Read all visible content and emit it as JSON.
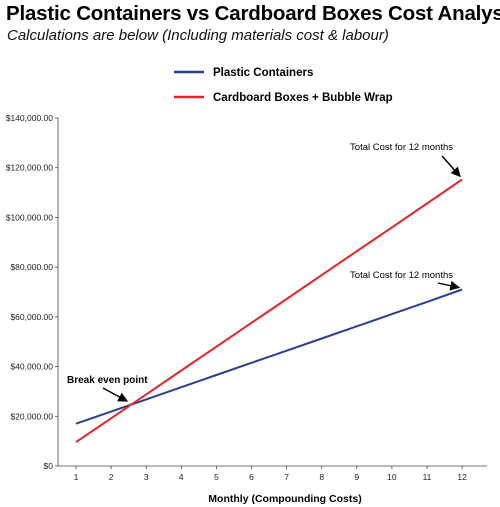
{
  "header": {
    "title": "Plastic Containers vs Cardboard Boxes Cost Analysis",
    "subtitle": "Calculations are below (Including materials cost & labour)"
  },
  "chart_data": {
    "type": "line",
    "title": "Plastic Containers vs Cardboard Boxes Cost Analysis",
    "subtitle": "Calculations are below (Including materials cost & labour)",
    "xlabel": "Monthly (Compounding Costs)",
    "ylabel": "",
    "x": [
      1,
      2,
      3,
      4,
      5,
      6,
      7,
      8,
      9,
      10,
      11,
      12
    ],
    "x_tick_labels": [
      "1",
      "2",
      "3",
      "4",
      "5",
      "6",
      "7",
      "8",
      "9",
      "10",
      "11",
      "12"
    ],
    "ylim": [
      0,
      140000
    ],
    "y_tick_values": [
      0,
      20000,
      40000,
      60000,
      80000,
      100000,
      120000,
      140000
    ],
    "y_tick_labels": [
      "$0",
      "$20,000.00",
      "$40,000.00",
      "$60,000.00",
      "$80,000.00",
      "$100,000.00",
      "$120,000.00",
      "$140,000.00"
    ],
    "grid": false,
    "legend_position": "top-center",
    "series": [
      {
        "name": "Plastic Containers",
        "color": "#2b3f8f",
        "values": [
          17000,
          21900,
          26800,
          31700,
          36600,
          41500,
          46400,
          51300,
          56200,
          61100,
          66000,
          71000
        ]
      },
      {
        "name": "Cardboard Boxes + Bubble Wrap",
        "color": "#e0262b",
        "values": [
          9600,
          19200,
          28800,
          38400,
          48000,
          57600,
          67200,
          76800,
          86400,
          96000,
          105600,
          115300
        ]
      }
    ],
    "annotations": [
      {
        "text": "Total Cost for 12 months",
        "series": 1,
        "x": 12,
        "y": 115300
      },
      {
        "text": "Total Cost for 12 months",
        "series": 0,
        "x": 12,
        "y": 71000
      },
      {
        "text": "Break even point",
        "x": 2.6,
        "y": 24500
      }
    ]
  }
}
